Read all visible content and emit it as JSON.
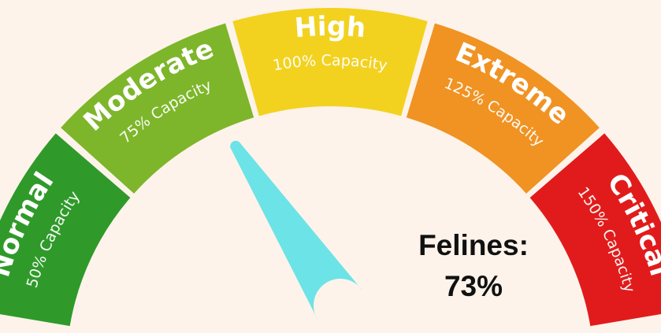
{
  "gauge": {
    "level_percent": 73,
    "needle_color": "#6ce3e6",
    "segments": [
      {
        "title": "Normal",
        "subtitle": "50% Capacity",
        "color": "#2f9a2a"
      },
      {
        "title": "Moderate",
        "subtitle": "75% Capacity",
        "color": "#7db62a"
      },
      {
        "title": "High",
        "subtitle": "100% Capacity",
        "color": "#f2d21f"
      },
      {
        "title": "Extreme",
        "subtitle": "125% Capacity",
        "color": "#f09323"
      },
      {
        "title": "Critical",
        "subtitle": "150% Capacity",
        "color": "#e11b1b"
      }
    ]
  },
  "readout": {
    "label": "Felines:",
    "value": "73%"
  }
}
